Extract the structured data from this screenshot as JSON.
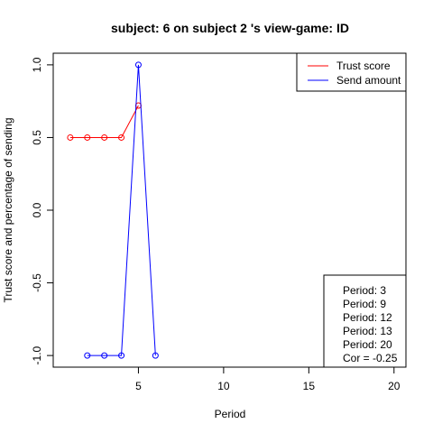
{
  "chart_data": {
    "type": "line",
    "title": "subject:  6  on subject  2 's view-game:  ID",
    "xlabel": "Period",
    "ylabel": "Trust score and percentage of sending",
    "xlim": [
      0,
      20.7
    ],
    "ylim": [
      -1.08,
      1.08
    ],
    "xticks": [
      5,
      10,
      15,
      20
    ],
    "yticks": [
      -1.0,
      -0.5,
      0.0,
      0.5,
      1.0
    ],
    "ytick_labels": [
      "-1.0",
      "-0.5",
      "0.0",
      "0.5",
      "1.0"
    ],
    "grid": false,
    "legend_position": "top-right",
    "series": [
      {
        "name": "Trust score",
        "color": "#ff0000",
        "x": [
          1,
          2,
          3,
          4,
          5
        ],
        "y": [
          0.5,
          0.5,
          0.5,
          0.5,
          0.72
        ]
      },
      {
        "name": "Send amount",
        "color": "#0000ff",
        "x": [
          2,
          3,
          4,
          5,
          6
        ],
        "y": [
          -1.0,
          -1.0,
          -1.0,
          1.0,
          -1.0
        ]
      }
    ],
    "annotation_lines": [
      "Period:  3",
      "Period:  9",
      "Period:  12",
      "Period:  13",
      "Period:  20",
      "Cor =  -0.25"
    ]
  }
}
